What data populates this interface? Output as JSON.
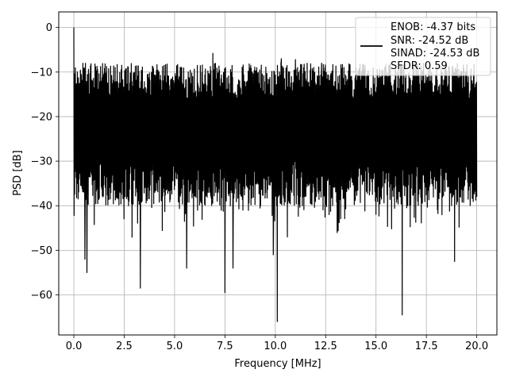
{
  "chart_data": {
    "type": "line",
    "title": "",
    "xlabel": "Frequency [MHz]",
    "ylabel": "PSD [dB]",
    "xlim": [
      -0.75,
      21.0
    ],
    "ylim": [
      -69.0,
      3.5
    ],
    "xticks": [
      0.0,
      2.5,
      5.0,
      7.5,
      10.0,
      12.5,
      15.0,
      17.5,
      20.0
    ],
    "xtick_labels": [
      "0.0",
      "2.5",
      "5.0",
      "7.5",
      "10.0",
      "12.5",
      "15.0",
      "17.5",
      "20.0"
    ],
    "yticks": [
      0,
      -10,
      -20,
      -30,
      -40,
      -50,
      -60
    ],
    "ytick_labels": [
      "0",
      "−10",
      "−20",
      "−30",
      "−40",
      "−50",
      "−60"
    ],
    "grid": true,
    "legend_position": "top-right",
    "legend_lines": [
      "ENOB: -4.37 bits",
      "SNR: -24.52 dB",
      "SINAD: -24.53 dB",
      "SFDR: 0.59"
    ],
    "line_color": "#000000",
    "series": [
      {
        "x_range": [
          0.0,
          20.0
        ],
        "points": 1600,
        "noise_floor_dB_range": [
          -30,
          -14
        ],
        "peak_ceiling_dB_range": [
          -17,
          -6
        ],
        "dc_peak": {
          "x": 0.0,
          "y": 0.0
        },
        "notable_minima": [
          {
            "x": 0.55,
            "y": -52
          },
          {
            "x": 0.65,
            "y": -55
          },
          {
            "x": 3.3,
            "y": -58.5
          },
          {
            "x": 5.6,
            "y": -54
          },
          {
            "x": 7.5,
            "y": -59.5
          },
          {
            "x": 7.9,
            "y": -54
          },
          {
            "x": 9.9,
            "y": -51
          },
          {
            "x": 10.1,
            "y": -66
          },
          {
            "x": 10.6,
            "y": -47
          },
          {
            "x": 16.3,
            "y": -64.5
          },
          {
            "x": 18.9,
            "y": -52.5
          }
        ],
        "notable_maxima": [
          {
            "x": 6.9,
            "y": -5.8
          },
          {
            "x": 10.3,
            "y": -7
          },
          {
            "x": 11.0,
            "y": -7.2
          },
          {
            "x": 12.3,
            "y": -8
          }
        ]
      }
    ]
  }
}
